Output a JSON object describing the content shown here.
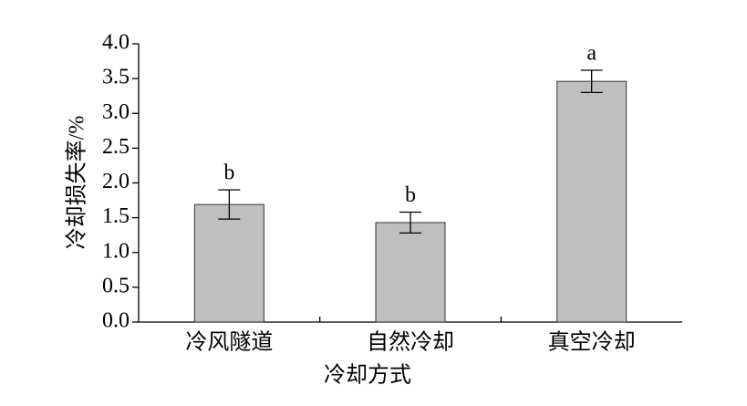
{
  "chart_data": {
    "type": "bar",
    "x_label": "冷却方式",
    "y_label": "冷却损失率/%",
    "categories": [
      "冷风隧道",
      "自然冷却",
      "真空冷却"
    ],
    "values": [
      1.69,
      1.43,
      3.46
    ],
    "errors": [
      0.21,
      0.15,
      0.16
    ],
    "annotations": [
      "b",
      "b",
      "a"
    ],
    "color": "#bfbfbf",
    "ylim": [
      0,
      4
    ],
    "yticks": [
      {
        "value": 0,
        "label": "0.0"
      },
      {
        "value": 0.5,
        "label": "0.5"
      },
      {
        "value": 1,
        "label": "1.0"
      },
      {
        "value": 1.5,
        "label": "1.5"
      },
      {
        "value": 2,
        "label": "2.0"
      },
      {
        "value": 2.5,
        "label": "2.5"
      },
      {
        "value": 3,
        "label": "3.0"
      },
      {
        "value": 3.5,
        "label": "3.5"
      },
      {
        "value": 4,
        "label": "4.0"
      }
    ]
  }
}
